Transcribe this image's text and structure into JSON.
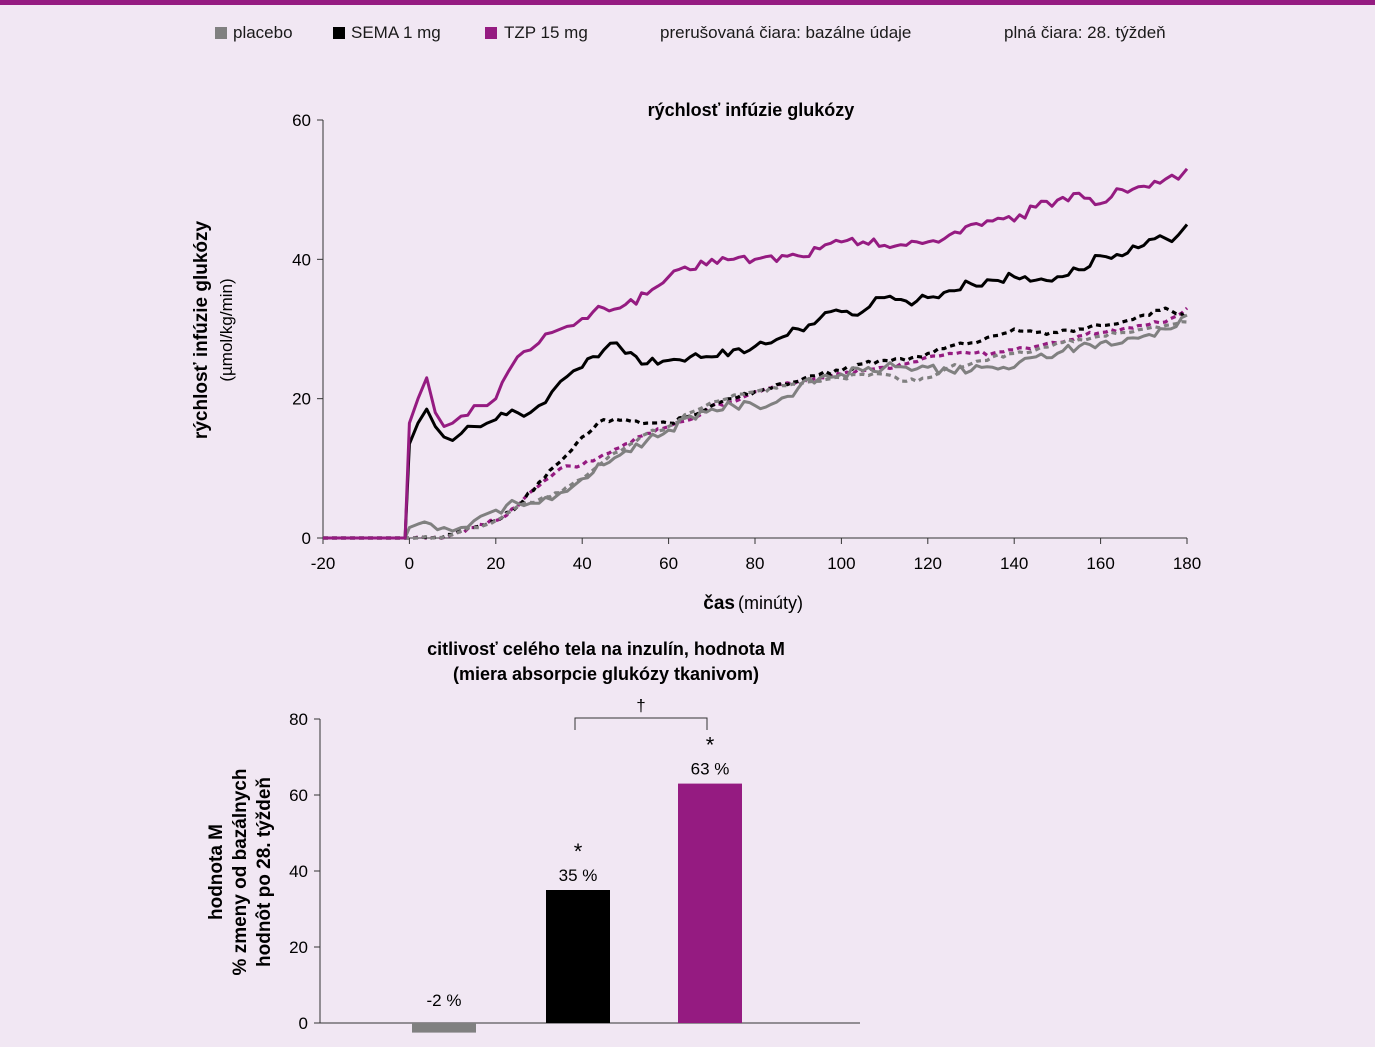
{
  "legend": {
    "placebo": "placebo",
    "sema": "SEMA 1 mg",
    "tzp": "TZP 15 mg",
    "dashed_note": "prerušovaná čiara: bazálne údaje",
    "solid_note": "plná čiara: 28. týždeň"
  },
  "colors": {
    "placebo": "#808080",
    "sema": "#000000",
    "tzp": "#951b81",
    "background": "#f1e7f3",
    "accent_bar": "#951b81"
  },
  "chart_data": [
    {
      "type": "line",
      "title": "rýchlosť infúzie glukózy",
      "xlabel": "čas",
      "xlabel_unit": "(minúty)",
      "ylabel": "rýchlosť infúzie glukózy",
      "ylabel_unit": "(µmol/kg/min)",
      "xlim": [
        -20,
        180
      ],
      "ylim": [
        0,
        60
      ],
      "xticks": [
        -20,
        0,
        20,
        40,
        60,
        80,
        100,
        120,
        140,
        160,
        180
      ],
      "yticks": [
        0,
        20,
        40,
        60
      ],
      "grid": false,
      "series": [
        {
          "name": "TZP 15 mg",
          "key": "tzp",
          "period": "28. týždeň",
          "style": "solid",
          "x": [
            -20,
            -1,
            0,
            2,
            4,
            6,
            8,
            10,
            12,
            15,
            18,
            20,
            23,
            25,
            28,
            30,
            33,
            35,
            38,
            40,
            45,
            50,
            55,
            60,
            65,
            70,
            75,
            80,
            90,
            95,
            100,
            105,
            110,
            115,
            120,
            125,
            130,
            135,
            140,
            145,
            150,
            155,
            160,
            165,
            170,
            175,
            178,
            180
          ],
          "y": [
            0,
            0,
            16.5,
            20,
            23,
            18,
            16,
            16.5,
            17.5,
            19,
            19,
            20,
            24,
            26,
            27,
            28,
            29.5,
            30,
            30.5,
            31.5,
            33,
            33.5,
            35,
            37.5,
            38.5,
            40,
            40,
            40,
            40.5,
            41.5,
            42.5,
            42.5,
            42,
            42,
            42.5,
            43.5,
            45,
            45.5,
            45.5,
            47.5,
            48.5,
            49.5,
            48,
            50,
            50.5,
            51.5,
            51.5,
            53
          ]
        },
        {
          "name": "SEMA 1 mg",
          "key": "sema",
          "period": "28. týždeň",
          "style": "solid",
          "x": [
            -20,
            -1,
            0,
            2,
            4,
            6,
            8,
            10,
            12,
            15,
            18,
            20,
            25,
            28,
            30,
            33,
            35,
            38,
            40,
            45,
            48,
            50,
            55,
            60,
            65,
            70,
            75,
            80,
            85,
            90,
            95,
            100,
            105,
            108,
            110,
            115,
            120,
            125,
            130,
            135,
            140,
            145,
            150,
            155,
            160,
            165,
            170,
            175,
            178,
            180
          ],
          "y": [
            0,
            0,
            13.5,
            16.5,
            18.5,
            16,
            14.5,
            14,
            15,
            16,
            16.5,
            17,
            18,
            18,
            19,
            21,
            22.5,
            24,
            24.5,
            27,
            28,
            26.5,
            25,
            25.5,
            26,
            26,
            27,
            27.5,
            28.5,
            30,
            31.5,
            32.5,
            32.5,
            34.5,
            34.5,
            34,
            34.5,
            35.5,
            36.5,
            37,
            37.5,
            37,
            37.5,
            38.5,
            40.5,
            40.5,
            42,
            43,
            43.5,
            45
          ]
        },
        {
          "name": "placebo",
          "key": "placebo",
          "period": "28. týždeň",
          "style": "solid",
          "x": [
            -20,
            -1,
            0,
            2,
            5,
            8,
            10,
            12,
            15,
            18,
            20,
            25,
            28,
            30,
            33,
            35,
            38,
            40,
            45,
            50,
            55,
            60,
            65,
            70,
            75,
            80,
            85,
            90,
            95,
            100,
            105,
            110,
            115,
            120,
            125,
            130,
            135,
            140,
            145,
            150,
            155,
            160,
            165,
            170,
            175,
            180
          ],
          "y": [
            0,
            0,
            1.5,
            2,
            2,
            1.5,
            1,
            1.5,
            2.5,
            3.5,
            4,
            5,
            5,
            5,
            5.5,
            6.5,
            7.5,
            8.5,
            10.5,
            12.5,
            14,
            15.5,
            17.5,
            18.5,
            19,
            19,
            19.5,
            21.5,
            23,
            23.5,
            24,
            24.5,
            24.5,
            24.5,
            24,
            24,
            24.5,
            24.5,
            26,
            26.5,
            27.5,
            28,
            28,
            29,
            30,
            32
          ]
        },
        {
          "name": "TZP 15 mg",
          "key": "tzp",
          "period": "bazálne údaje",
          "style": "dashed",
          "x": [
            -20,
            -1,
            0,
            5,
            10,
            15,
            20,
            25,
            30,
            35,
            40,
            45,
            50,
            55,
            60,
            65,
            70,
            75,
            80,
            85,
            90,
            95,
            100,
            105,
            110,
            115,
            120,
            125,
            130,
            135,
            140,
            145,
            150,
            155,
            160,
            165,
            170,
            175,
            180
          ],
          "y": [
            0,
            0,
            0,
            0,
            0.5,
            1.5,
            2.5,
            4.5,
            7.5,
            10,
            10.5,
            12,
            13.5,
            15,
            16,
            17,
            19,
            19.5,
            21,
            22,
            22.5,
            23,
            23.5,
            24,
            24.5,
            25,
            26,
            26.5,
            26.5,
            26.5,
            27,
            27.5,
            28,
            29,
            29.5,
            30,
            30.5,
            31,
            33
          ]
        },
        {
          "name": "SEMA 1 mg",
          "key": "sema",
          "period": "bazálne údaje",
          "style": "dashed",
          "x": [
            -20,
            -1,
            0,
            5,
            10,
            15,
            20,
            25,
            30,
            35,
            40,
            45,
            50,
            55,
            60,
            65,
            70,
            75,
            80,
            85,
            90,
            95,
            100,
            105,
            110,
            115,
            120,
            125,
            130,
            135,
            140,
            145,
            150,
            155,
            160,
            165,
            170,
            175,
            180
          ],
          "y": [
            0,
            0,
            0,
            0,
            0.5,
            1.5,
            2.5,
            4.5,
            8,
            11,
            14.5,
            17,
            17,
            16.5,
            16.5,
            17.5,
            19,
            20,
            21,
            22,
            22.5,
            23.5,
            24,
            25,
            25.5,
            25.5,
            26.5,
            27.5,
            28,
            29,
            30,
            29.5,
            29.5,
            30,
            30.5,
            31,
            32,
            33,
            31.5
          ]
        },
        {
          "name": "placebo",
          "key": "placebo",
          "period": "bazálne údaje",
          "style": "dashed",
          "x": [
            -20,
            -1,
            0,
            5,
            10,
            15,
            20,
            25,
            30,
            35,
            40,
            45,
            50,
            55,
            60,
            65,
            70,
            75,
            80,
            85,
            90,
            95,
            100,
            105,
            110,
            115,
            120,
            125,
            130,
            135,
            140,
            145,
            150,
            155,
            160,
            165,
            170,
            175,
            180
          ],
          "y": [
            0,
            0,
            0,
            0,
            0.5,
            1.5,
            2.5,
            4.5,
            5.5,
            6.5,
            8.5,
            11,
            13,
            15,
            16,
            18,
            19.5,
            20.5,
            21,
            21.5,
            22,
            22.5,
            23,
            23.5,
            23.5,
            22.5,
            23,
            24.5,
            25,
            26,
            26.5,
            27,
            28,
            28.5,
            29,
            29.5,
            30,
            30.5,
            31
          ]
        }
      ]
    },
    {
      "type": "bar",
      "title": "citlivosť celého tela na inzulín, hodnota M",
      "subtitle": "(miera absorpcie glukózy tkanivom)",
      "ylabel": [
        "hodnota M",
        "% zmeny od bazálnych",
        "hodnôt po 28. týždeň"
      ],
      "ylim": [
        0,
        80
      ],
      "yticks": [
        0,
        20,
        40,
        60,
        80
      ],
      "categories": [
        "placebo",
        "SEMA 1 mg",
        "TZP 15 mg"
      ],
      "values": [
        -2,
        35,
        63
      ],
      "data_labels": [
        "-2 %",
        "35 %",
        "63 %"
      ],
      "significance": [
        "",
        "*",
        "*"
      ],
      "bracket": {
        "from": "SEMA 1 mg",
        "to": "TZP 15 mg",
        "label": "†"
      }
    }
  ]
}
